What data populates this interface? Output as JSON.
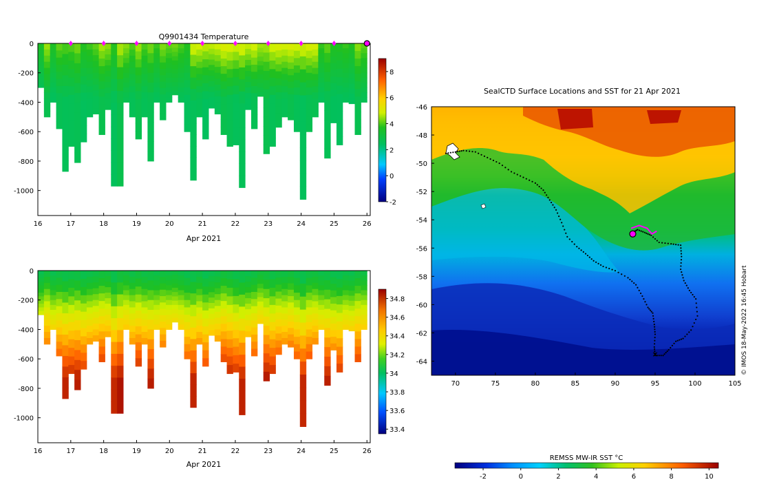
{
  "panels": {
    "temperature": {
      "title": "Q9901434  Temperature",
      "xlabel": "Apr 2021",
      "colorbar_ticks": [
        "-2",
        "0",
        "2",
        "4",
        "6",
        "8"
      ]
    },
    "salinity": {
      "title": "",
      "xlabel": "Apr 2021",
      "colorbar_ticks": [
        "33.4",
        "33.6",
        "33.8",
        "34",
        "34.2",
        "34.4",
        "34.6",
        "34.8"
      ]
    },
    "map": {
      "title": "SealCTD Surface Locations and SST for 21 Apr 2021",
      "credit": "© IMOS 18-May-2022 16:45 Hobart",
      "colorbar_label": "REMSS MW-IR SST °C",
      "colorbar_ticks": [
        "-2",
        "0",
        "2",
        "4",
        "6",
        "8",
        "10"
      ]
    }
  },
  "colors": {
    "marker": "#ff00ff",
    "track": "#000000"
  },
  "chart_data": [
    {
      "type": "heatmap",
      "name": "temperature-section",
      "title": "Q9901434  Temperature",
      "xlabel": "Apr 2021",
      "ylabel": "",
      "xlim": [
        16,
        26.1
      ],
      "ylim": [
        -1170,
        0
      ],
      "xticks": [
        "16",
        "17",
        "18",
        "19",
        "20",
        "21",
        "22",
        "23",
        "24",
        "25",
        "26"
      ],
      "yticks": [
        "0",
        "-200",
        "-400",
        "-600",
        "-800",
        "-1000"
      ],
      "colorbar": {
        "min": -2,
        "max": 9,
        "ticks": [
          "-2",
          "0",
          "2",
          "4",
          "6",
          "8"
        ]
      },
      "surface_markers_days": [
        17,
        18,
        19,
        20,
        21,
        22,
        23,
        24,
        25
      ],
      "last_marker_day": 26,
      "profile_max_depths": [
        -300,
        -500,
        -400,
        -580,
        -870,
        -700,
        -810,
        -670,
        -500,
        -480,
        -620,
        -450,
        -970,
        -970,
        -400,
        -500,
        -650,
        -500,
        -800,
        -400,
        -520,
        -400,
        -350,
        -400,
        -600,
        -930,
        -500,
        -650,
        -440,
        -480,
        -620,
        -700,
        -690,
        -980,
        -450,
        -580,
        -360,
        -750,
        -700,
        -570,
        -500,
        -520,
        -600,
        -1060,
        -600,
        -500,
        -400,
        -780,
        -540,
        -690,
        -400,
        -410,
        -620,
        -400
      ]
    },
    {
      "type": "heatmap",
      "name": "salinity-section",
      "title": "",
      "xlabel": "Apr 2021",
      "ylabel": "",
      "xlim": [
        16,
        26.1
      ],
      "ylim": [
        -1170,
        0
      ],
      "xticks": [
        "16",
        "17",
        "18",
        "19",
        "20",
        "21",
        "22",
        "23",
        "24",
        "25",
        "26"
      ],
      "yticks": [
        "0",
        "-200",
        "-400",
        "-600",
        "-800",
        "-1000"
      ],
      "colorbar": {
        "min": 33.35,
        "max": 34.9,
        "ticks": [
          "33.4",
          "33.6",
          "33.8",
          "34",
          "34.2",
          "34.4",
          "34.6",
          "34.8"
        ]
      }
    },
    {
      "type": "scatter",
      "name": "sst-map",
      "title": "SealCTD Surface Locations and SST for 21 Apr 2021",
      "xlim": [
        67,
        105
      ],
      "ylim": [
        -65,
        -46
      ],
      "xticks": [
        "70",
        "75",
        "80",
        "85",
        "90",
        "95",
        "100",
        "105"
      ],
      "yticks": [
        "-46",
        "-48",
        "-50",
        "-52",
        "-54",
        "-56",
        "-58",
        "-60",
        "-62",
        "-64"
      ],
      "colorbar": {
        "label": "REMSS MW-IR SST °C",
        "min": -3.5,
        "max": 10.5,
        "ticks": [
          "-2",
          "0",
          "2",
          "4",
          "6",
          "8",
          "10"
        ]
      },
      "track": [
        [
          68.8,
          -49.3
        ],
        [
          70,
          -49.2
        ],
        [
          71,
          -49.1
        ],
        [
          72.5,
          -49.2
        ],
        [
          74,
          -49.6
        ],
        [
          75.5,
          -50
        ],
        [
          77,
          -50.6
        ],
        [
          78.5,
          -51
        ],
        [
          80,
          -51.4
        ],
        [
          81,
          -51.9
        ],
        [
          81.8,
          -52.6
        ],
        [
          82.6,
          -53.3
        ],
        [
          83.3,
          -54.2
        ],
        [
          84,
          -55.2
        ],
        [
          85.2,
          -55.9
        ],
        [
          86.3,
          -56.4
        ],
        [
          87.3,
          -56.9
        ],
        [
          88.5,
          -57.3
        ],
        [
          90,
          -57.6
        ],
        [
          91.6,
          -58.1
        ],
        [
          92.6,
          -58.6
        ],
        [
          93.4,
          -59.4
        ],
        [
          94.1,
          -60.2
        ],
        [
          94.7,
          -60.6
        ],
        [
          94.9,
          -61.4
        ],
        [
          95,
          -62.1
        ],
        [
          94.9,
          -63
        ],
        [
          95,
          -63.6
        ],
        [
          96,
          -63.6
        ],
        [
          96.7,
          -63.2
        ],
        [
          97.6,
          -62.6
        ],
        [
          98.5,
          -62.4
        ],
        [
          99.5,
          -61.8
        ],
        [
          100.3,
          -60.8
        ],
        [
          100.1,
          -59.6
        ],
        [
          99.3,
          -59
        ],
        [
          98.6,
          -58.3
        ],
        [
          98.2,
          -57.5
        ],
        [
          98.3,
          -56.6
        ],
        [
          98.2,
          -55.8
        ],
        [
          97,
          -55.7
        ],
        [
          95.5,
          -55.6
        ],
        [
          94.5,
          -55.1
        ],
        [
          93.7,
          -54.9
        ],
        [
          92.8,
          -54.7
        ],
        [
          92.2,
          -54.9
        ]
      ],
      "highlight_track": [
        [
          92,
          -54.6
        ],
        [
          93,
          -54.4
        ],
        [
          94,
          -54.6
        ],
        [
          94.6,
          -55
        ],
        [
          95.2,
          -54.8
        ]
      ],
      "current_position": [
        92.2,
        -55
      ],
      "start_marker": [
        95,
        -63.5
      ]
    }
  ]
}
